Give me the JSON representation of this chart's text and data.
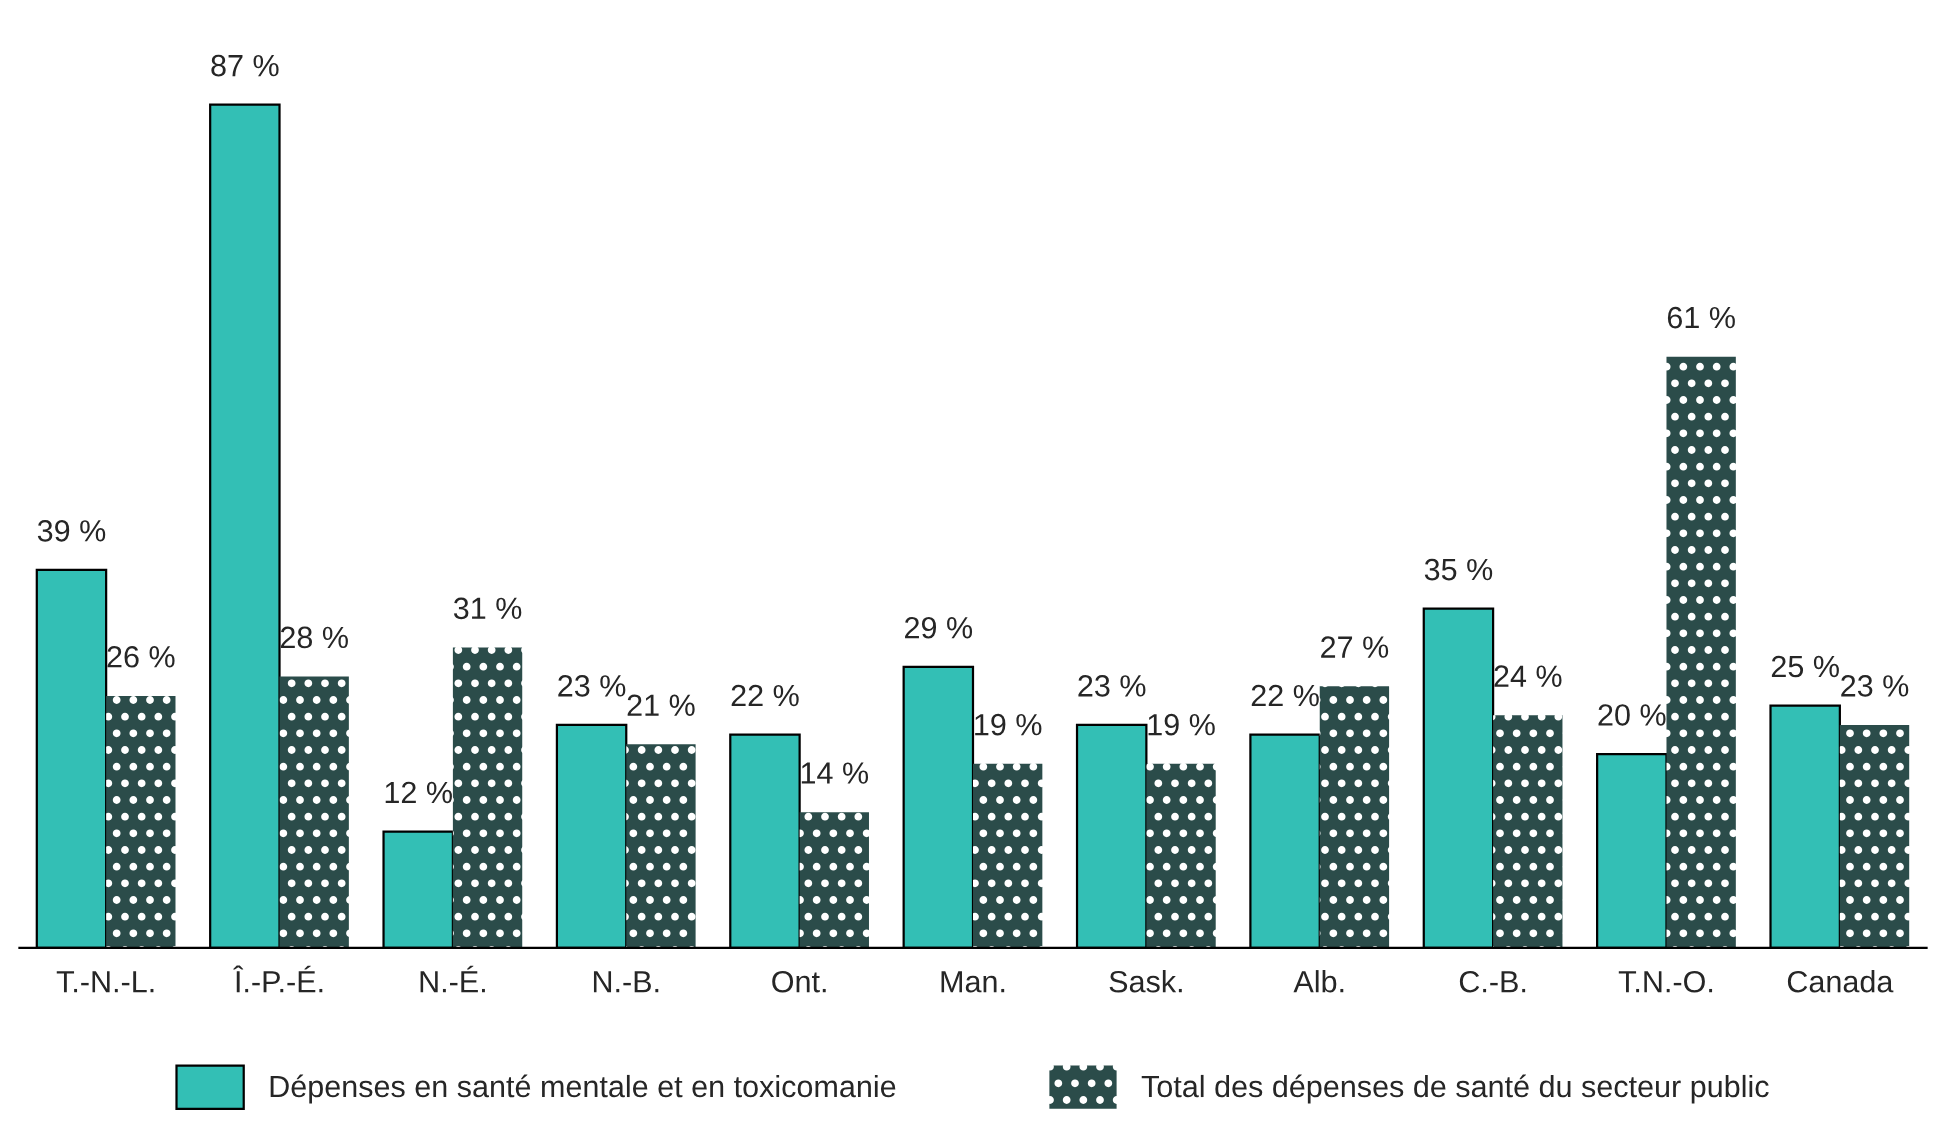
{
  "chart_data": {
    "type": "bar",
    "categories": [
      "T.-N.-L.",
      "Î.-P.-É.",
      "N.-É.",
      "N.-B.",
      "Ont.",
      "Man.",
      "Sask.",
      "Alb.",
      "C.-B.",
      "T.N.-O.",
      "Canada"
    ],
    "series": [
      {
        "name": "Dépenses en santé mentale et en toxicomanie",
        "color": "#33bfb5",
        "values": [
          39,
          87,
          12,
          23,
          22,
          29,
          23,
          22,
          35,
          20,
          25
        ],
        "value_labels": [
          "39 %",
          "87 %",
          "12 %",
          "23 %",
          "22 %",
          "29 %",
          "23 %",
          "22 %",
          "35 %",
          "20 %",
          "25 %"
        ]
      },
      {
        "name": "Total des dépenses de santé du secteur public",
        "color": "#2b4c4a",
        "values": [
          26,
          28,
          31,
          21,
          14,
          19,
          19,
          27,
          24,
          61,
          23
        ],
        "value_labels": [
          "26 %",
          "28 %",
          "31 %",
          "21 %",
          "14 %",
          "19 %",
          "19 %",
          "27 %",
          "24 %",
          "61 %",
          "23 %"
        ]
      }
    ],
    "legend": "bottom",
    "grid": false
  }
}
